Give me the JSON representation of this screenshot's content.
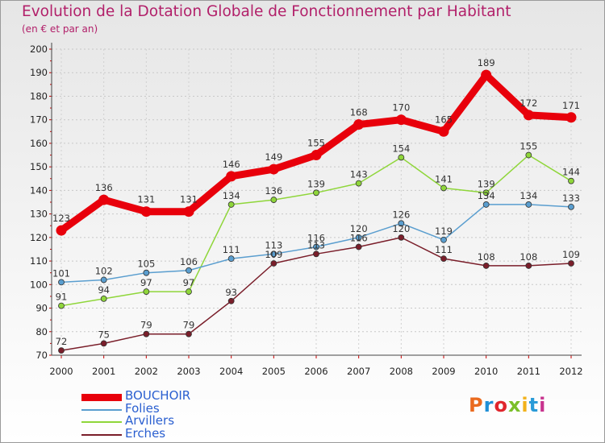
{
  "header": {
    "title": "Evolution de la Dotation Globale de Fonctionnement par Habitant",
    "subtitle": "(en € et par an)"
  },
  "logo": {
    "text": "Proxiti",
    "colors": [
      "#ea6a1e",
      "#1f8fd6",
      "#e0262d",
      "#7bbf2a",
      "#f2b21c",
      "#2a9bd8",
      "#c8338e"
    ]
  },
  "chart_data": {
    "type": "line",
    "x": [
      "2000",
      "2001",
      "2002",
      "2003",
      "2004",
      "2005",
      "2006",
      "2007",
      "2008",
      "2009",
      "2010",
      "2011",
      "2012"
    ],
    "ylim": [
      70,
      200
    ],
    "yticks": [
      "70",
      "80",
      "90",
      "100",
      "110",
      "120",
      "130",
      "140",
      "150",
      "160",
      "170",
      "180",
      "190",
      "200"
    ],
    "grid": true,
    "legend_position": "bottom-left",
    "series": [
      {
        "name": "BOUCHOIR",
        "color": "#e8000b",
        "values": [
          123,
          136,
          131,
          131,
          146,
          149,
          155,
          168,
          170,
          165,
          189,
          172,
          171
        ]
      },
      {
        "name": "Folies",
        "color": "#5a9ecf",
        "values": [
          101,
          102,
          105,
          106,
          111,
          113,
          116,
          120,
          126,
          119,
          134,
          134,
          133
        ]
      },
      {
        "name": "Arvillers",
        "color": "#8fd63a",
        "values": [
          91,
          94,
          97,
          97,
          134,
          136,
          139,
          143,
          154,
          141,
          139,
          155,
          144
        ]
      },
      {
        "name": "Erches",
        "color": "#7a1e2a",
        "values": [
          72,
          75,
          79,
          79,
          93,
          109,
          113,
          116,
          120,
          111,
          108,
          108,
          109
        ]
      }
    ]
  }
}
